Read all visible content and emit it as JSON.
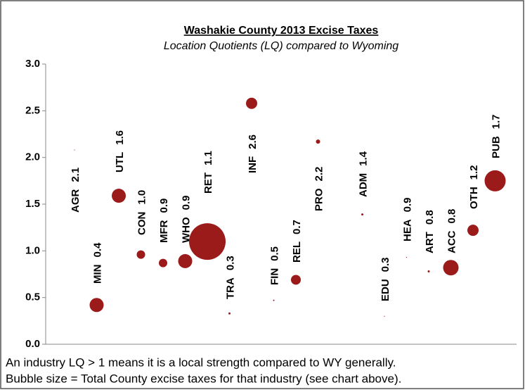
{
  "chart_data": {
    "type": "bubble",
    "title": "Washakie County 2013 Excise Taxes",
    "subtitle": "Location Quotients (LQ) compared to Wyoming",
    "categories": [
      "AGR",
      "MIN",
      "UTL",
      "CON",
      "MFR",
      "WHO",
      "RET",
      "TRA",
      "INF",
      "FIN",
      "REL",
      "PRO",
      null,
      "ADM",
      "EDU",
      "HEA",
      "ART",
      "ACC",
      "OTH",
      "PUB"
    ],
    "values": [
      2.08,
      0.42,
      1.59,
      0.96,
      0.87,
      0.89,
      1.1,
      0.33,
      2.58,
      0.47,
      0.69,
      2.17,
      null,
      1.39,
      0.3,
      0.93,
      0.78,
      0.82,
      1.22,
      1.75
    ],
    "value_labels": [
      "2.1",
      "0.4",
      "1.6",
      "1.0",
      "0.9",
      "0.9",
      "1.1",
      "0.3",
      "2.6",
      "0.5",
      "0.7",
      "2.2",
      null,
      "1.4",
      "0.3",
      "0.9",
      "0.8",
      "0.8",
      "1.2",
      "1.7"
    ],
    "sizes": [
      0.25,
      100,
      100,
      36,
      36,
      100,
      676,
      2.25,
      64,
      1,
      49,
      9,
      null,
      2.25,
      0.25,
      0.25,
      2.25,
      121,
      64,
      225
    ],
    "color": "#9b1b1b",
    "ylim": [
      0,
      3
    ],
    "yticks": [
      {
        "value": 0,
        "label": "0.0"
      },
      0.5,
      {
        "value": 1,
        "label": "1.0"
      },
      1.5,
      {
        "value": 2,
        "label": "2.0"
      },
      2.5,
      {
        "value": 3,
        "label": "3.0"
      }
    ],
    "footnotes": [
      "An industry LQ > 1 means it is a local strength compared to WY generally.",
      "Bubble size = Total County excise taxes for that industry (see chart above)."
    ]
  }
}
